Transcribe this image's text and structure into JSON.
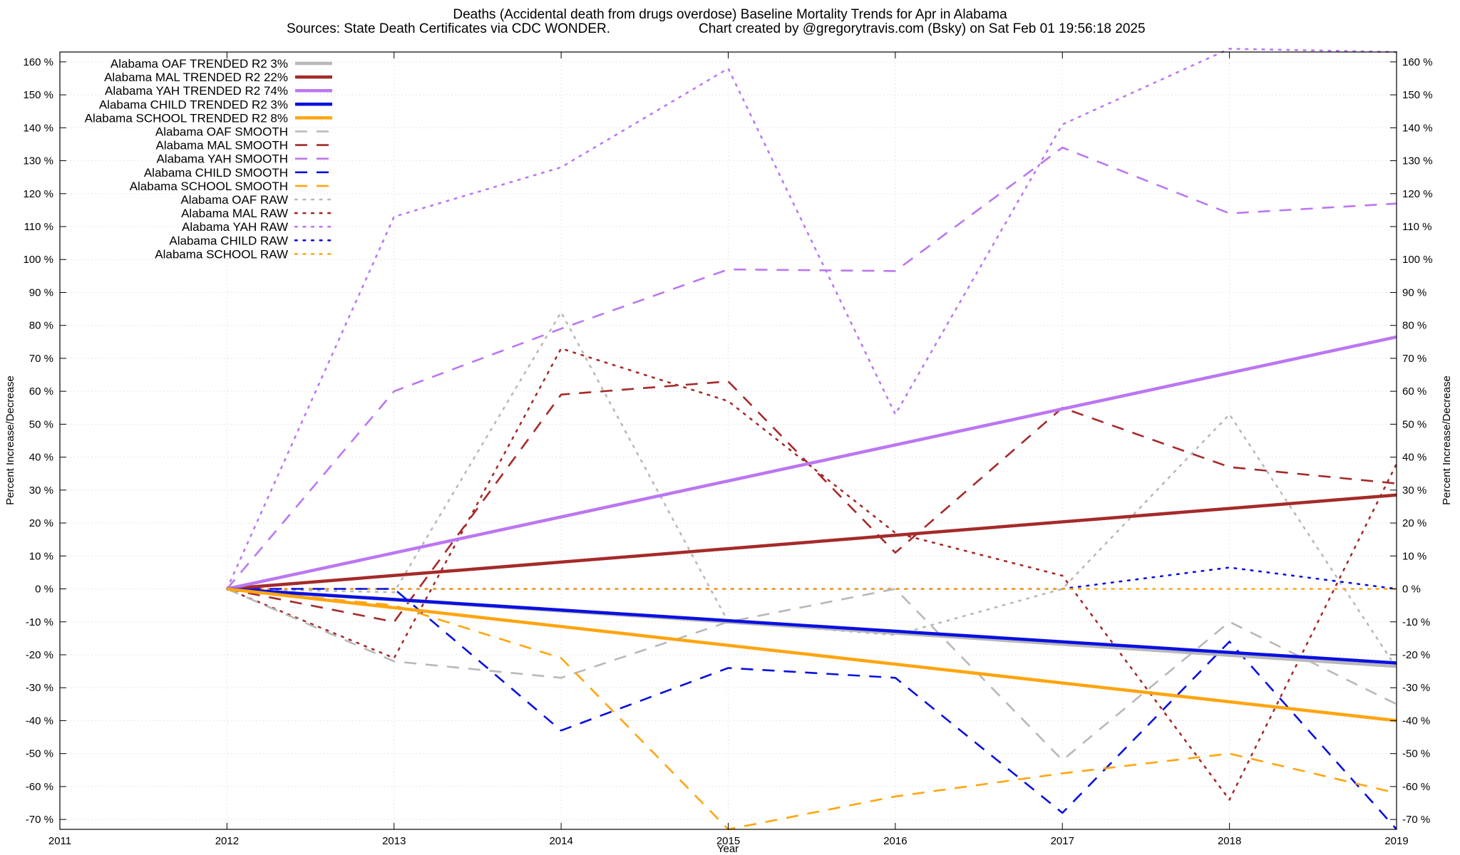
{
  "chart_data": {
    "type": "line",
    "title_line1": "Deaths (Accidental death from drugs overdose)  Baseline Mortality Trends for Apr in Alabama",
    "title_line2_left": "Sources: State Death Certificates via CDC WONDER.",
    "title_line2_right": "Chart created by @gregorytravis.com (Bsky) on Sat Feb 01 19:56:18 2025",
    "xlabel": "Year",
    "ylabel": "Percent Increase/Decrease",
    "xlim": [
      2011,
      2019
    ],
    "ylim": [
      -73,
      163
    ],
    "x_ticks": [
      2011,
      2012,
      2013,
      2014,
      2015,
      2016,
      2017,
      2018,
      2019
    ],
    "y_ticks": [
      -70,
      -60,
      -50,
      -40,
      -30,
      -20,
      -10,
      0,
      10,
      20,
      30,
      40,
      50,
      60,
      70,
      80,
      90,
      100,
      110,
      120,
      130,
      140,
      150,
      160
    ],
    "y_tick_suffix": " %",
    "grid": true,
    "legend_position": "top-left",
    "colors": {
      "OAF": "#b8b8b8",
      "MAL": "#a52a2a",
      "YAH": "#bb77f0",
      "CHILD": "#0a10e0",
      "SCHOOL": "#ffa510"
    },
    "series": [
      {
        "name": "Alabama OAF TRENDED R2   3%",
        "group": "OAF",
        "style": "trend",
        "x": [
          2012,
          2019
        ],
        "y": [
          0,
          -23.5
        ]
      },
      {
        "name": "Alabama MAL TRENDED R2  22%",
        "group": "MAL",
        "style": "trend",
        "x": [
          2012,
          2019
        ],
        "y": [
          0,
          28.5
        ]
      },
      {
        "name": "Alabama YAH TRENDED R2  74%",
        "group": "YAH",
        "style": "trend",
        "x": [
          2012,
          2019
        ],
        "y": [
          0,
          76.5
        ]
      },
      {
        "name": "Alabama CHILD TRENDED R2   3%",
        "group": "CHILD",
        "style": "trend",
        "x": [
          2012,
          2019
        ],
        "y": [
          0,
          -22.5
        ]
      },
      {
        "name": "Alabama SCHOOL TRENDED R2   8%",
        "group": "SCHOOL",
        "style": "trend",
        "x": [
          2012,
          2019
        ],
        "y": [
          0,
          -40
        ]
      },
      {
        "name": "Alabama OAF SMOOTH",
        "group": "OAF",
        "style": "smooth",
        "x": [
          2012,
          2013,
          2014,
          2015,
          2016,
          2017,
          2018,
          2019
        ],
        "y": [
          0,
          -22,
          -27,
          -10,
          0,
          -52,
          -10,
          -35
        ]
      },
      {
        "name": "Alabama MAL SMOOTH",
        "group": "MAL",
        "style": "smooth",
        "x": [
          2012,
          2013,
          2014,
          2015,
          2016,
          2017,
          2018,
          2019
        ],
        "y": [
          0,
          -10,
          59,
          63,
          11,
          55,
          37,
          32
        ]
      },
      {
        "name": "Alabama YAH SMOOTH",
        "group": "YAH",
        "style": "smooth",
        "x": [
          2012,
          2013,
          2014,
          2015,
          2016,
          2017,
          2018,
          2019
        ],
        "y": [
          0,
          60,
          79,
          97,
          96.5,
          134,
          114,
          117
        ]
      },
      {
        "name": "Alabama CHILD SMOOTH",
        "group": "CHILD",
        "style": "smooth",
        "x": [
          2012,
          2013,
          2014,
          2015,
          2016,
          2017,
          2018,
          2019
        ],
        "y": [
          0,
          0,
          -43,
          -24,
          -27,
          -68,
          -16,
          -73
        ]
      },
      {
        "name": "Alabama SCHOOL SMOOTH",
        "group": "SCHOOL",
        "style": "smooth",
        "x": [
          2012,
          2013,
          2014,
          2015,
          2016,
          2017,
          2018,
          2019
        ],
        "y": [
          0,
          -5,
          -21,
          -73,
          -63,
          -56,
          -50,
          -62
        ]
      },
      {
        "name": "Alabama OAF RAW",
        "group": "OAF",
        "style": "raw",
        "x": [
          2012,
          2013,
          2014,
          2015,
          2016,
          2017,
          2018,
          2019
        ],
        "y": [
          0,
          -1,
          84,
          -10,
          -14,
          0,
          53,
          -24
        ]
      },
      {
        "name": "Alabama MAL RAW",
        "group": "MAL",
        "style": "raw",
        "x": [
          2012,
          2013,
          2014,
          2015,
          2016,
          2017,
          2018,
          2019
        ],
        "y": [
          0,
          -21,
          73,
          57,
          17,
          4,
          -64,
          38
        ]
      },
      {
        "name": "Alabama YAH RAW",
        "group": "YAH",
        "style": "raw",
        "x": [
          2012,
          2013,
          2014,
          2015,
          2016,
          2017,
          2018,
          2019
        ],
        "y": [
          0,
          113,
          128,
          158,
          53,
          141,
          164,
          163
        ]
      },
      {
        "name": "Alabama CHILD RAW",
        "group": "CHILD",
        "style": "raw",
        "x": [
          2012,
          2013,
          2014,
          2015,
          2016,
          2017,
          2018,
          2019
        ],
        "y": [
          0,
          0,
          0,
          0,
          0,
          0,
          6.5,
          0
        ]
      },
      {
        "name": "Alabama SCHOOL RAW",
        "group": "SCHOOL",
        "style": "raw",
        "x": [
          2012,
          2013,
          2014,
          2015,
          2016,
          2017,
          2018,
          2019
        ],
        "y": [
          0,
          0,
          0,
          0,
          0,
          0,
          0,
          0
        ]
      }
    ]
  }
}
